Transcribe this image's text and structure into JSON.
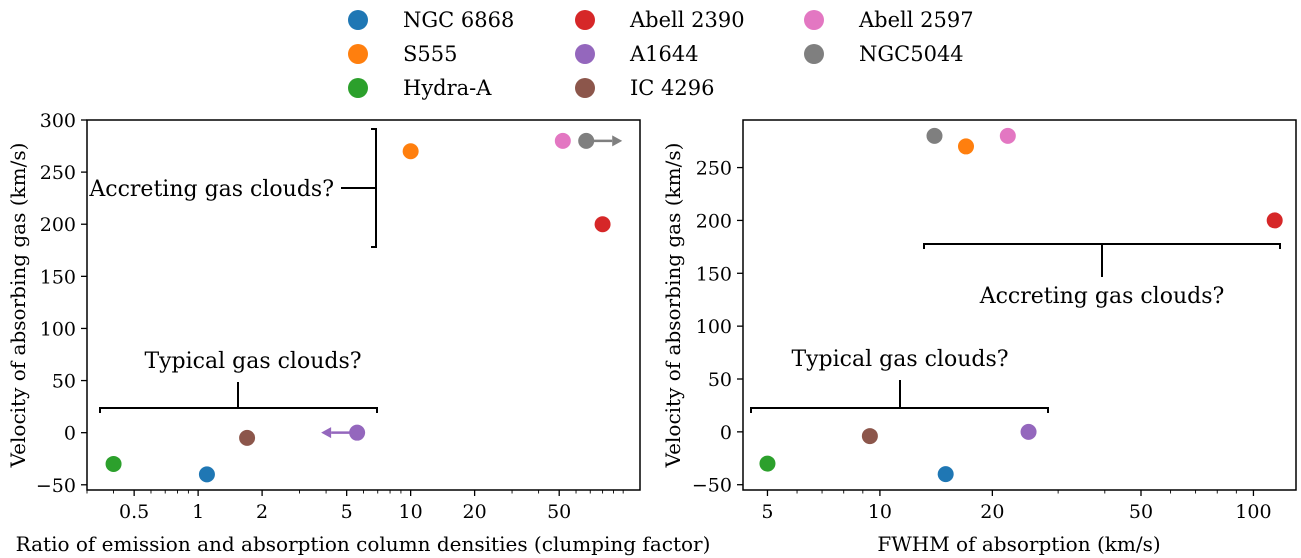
{
  "legend": {
    "items": [
      {
        "label": "NGC 6868",
        "color": "#1f77b4"
      },
      {
        "label": "S555",
        "color": "#ff7f0e"
      },
      {
        "label": "Hydra-A",
        "color": "#2ca02c"
      },
      {
        "label": "Abell 2390",
        "color": "#d62728"
      },
      {
        "label": "A1644",
        "color": "#9467bd"
      },
      {
        "label": "IC 4296",
        "color": "#8c564b"
      },
      {
        "label": "Abell 2597",
        "color": "#e377c2"
      },
      {
        "label": "NGC5044",
        "color": "#7f7f7f"
      }
    ]
  },
  "chart_data": [
    {
      "type": "scatter",
      "xscale": "log",
      "xlabel": "Ratio of emission and absorption column densities (clumping factor)",
      "ylabel": "Velocity of absorbing gas (km/s)",
      "xlim": [
        0.3,
        120
      ],
      "ylim": [
        -55,
        300
      ],
      "xticks": [
        0.5,
        1,
        2,
        5,
        10,
        20,
        50
      ],
      "xtick_labels": [
        "0.5",
        "1",
        "2",
        "5",
        "10",
        "20",
        "50"
      ],
      "yticks": [
        -50,
        0,
        50,
        100,
        150,
        200,
        250,
        300
      ],
      "ytick_labels": [
        "−50",
        "0",
        "50",
        "100",
        "150",
        "200",
        "250",
        "300"
      ],
      "points": [
        {
          "name": "NGC 6868",
          "x": 1.1,
          "y": -40
        },
        {
          "name": "S555",
          "x": 10,
          "y": 270
        },
        {
          "name": "Hydra-A",
          "x": 0.4,
          "y": -30
        },
        {
          "name": "Abell 2390",
          "x": 80,
          "y": 200
        },
        {
          "name": "A1644",
          "x": 5.6,
          "y": 0,
          "limit": "upper"
        },
        {
          "name": "IC 4296",
          "x": 1.7,
          "y": -5
        },
        {
          "name": "Abell 2597",
          "x": 52,
          "y": 280
        },
        {
          "name": "NGC5044",
          "x": 67,
          "y": 280,
          "limit": "lower"
        }
      ],
      "annotations": [
        {
          "text": "Accreting gas clouds?"
        },
        {
          "text": "Typical gas clouds?"
        }
      ]
    },
    {
      "type": "scatter",
      "xscale": "log",
      "xlabel": "FWHM of absorption (km/s)",
      "ylabel": "Velocity of absorbing gas (km/s)",
      "xlim": [
        4.3,
        130
      ],
      "ylim": [
        -55,
        295
      ],
      "xticks": [
        5,
        10,
        20,
        50,
        100
      ],
      "xtick_labels": [
        "5",
        "10",
        "20",
        "50",
        "100"
      ],
      "yticks": [
        -50,
        0,
        50,
        100,
        150,
        200,
        250
      ],
      "ytick_labels": [
        "−50",
        "0",
        "50",
        "100",
        "150",
        "200",
        "250"
      ],
      "points": [
        {
          "name": "NGC 6868",
          "x": 15,
          "y": -40
        },
        {
          "name": "S555",
          "x": 17,
          "y": 270
        },
        {
          "name": "Hydra-A",
          "x": 5,
          "y": -30
        },
        {
          "name": "Abell 2390",
          "x": 114,
          "y": 200
        },
        {
          "name": "A1644",
          "x": 25,
          "y": 0
        },
        {
          "name": "IC 4296",
          "x": 9.4,
          "y": -4
        },
        {
          "name": "Abell 2597",
          "x": 22,
          "y": 280
        },
        {
          "name": "NGC5044",
          "x": 14,
          "y": 280
        }
      ],
      "annotations": [
        {
          "text": "Accreting gas clouds?"
        },
        {
          "text": "Typical gas clouds?"
        }
      ]
    }
  ]
}
